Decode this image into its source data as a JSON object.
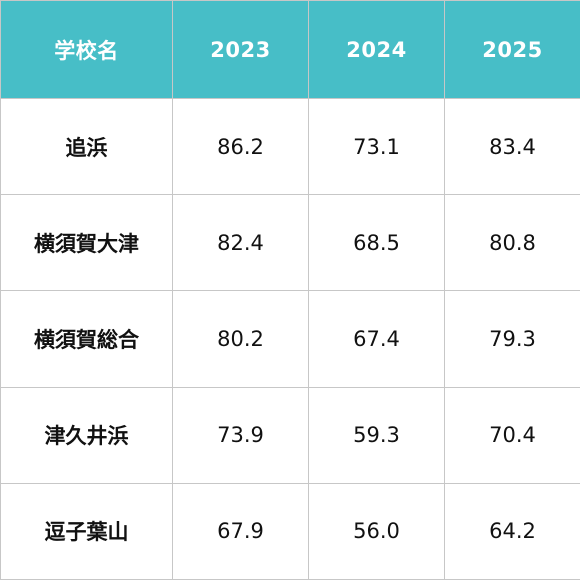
{
  "table": {
    "headers": [
      "学校名",
      "2023",
      "2024",
      "2025"
    ],
    "rows": [
      [
        "追浜",
        "86.2",
        "73.1",
        "83.4"
      ],
      [
        "横須賀大津",
        "82.4",
        "68.5",
        "80.8"
      ],
      [
        "横須賀総合",
        "80.2",
        "67.4",
        "79.3"
      ],
      [
        "津久井浜",
        "73.9",
        "59.3",
        "70.4"
      ],
      [
        "逗子葉山",
        "67.9",
        "56.0",
        "64.2"
      ]
    ]
  },
  "colors": {
    "header_bg": "#47bec7",
    "header_text": "#ffffff",
    "border": "#c7c7c7",
    "cell_text": "#111111"
  }
}
